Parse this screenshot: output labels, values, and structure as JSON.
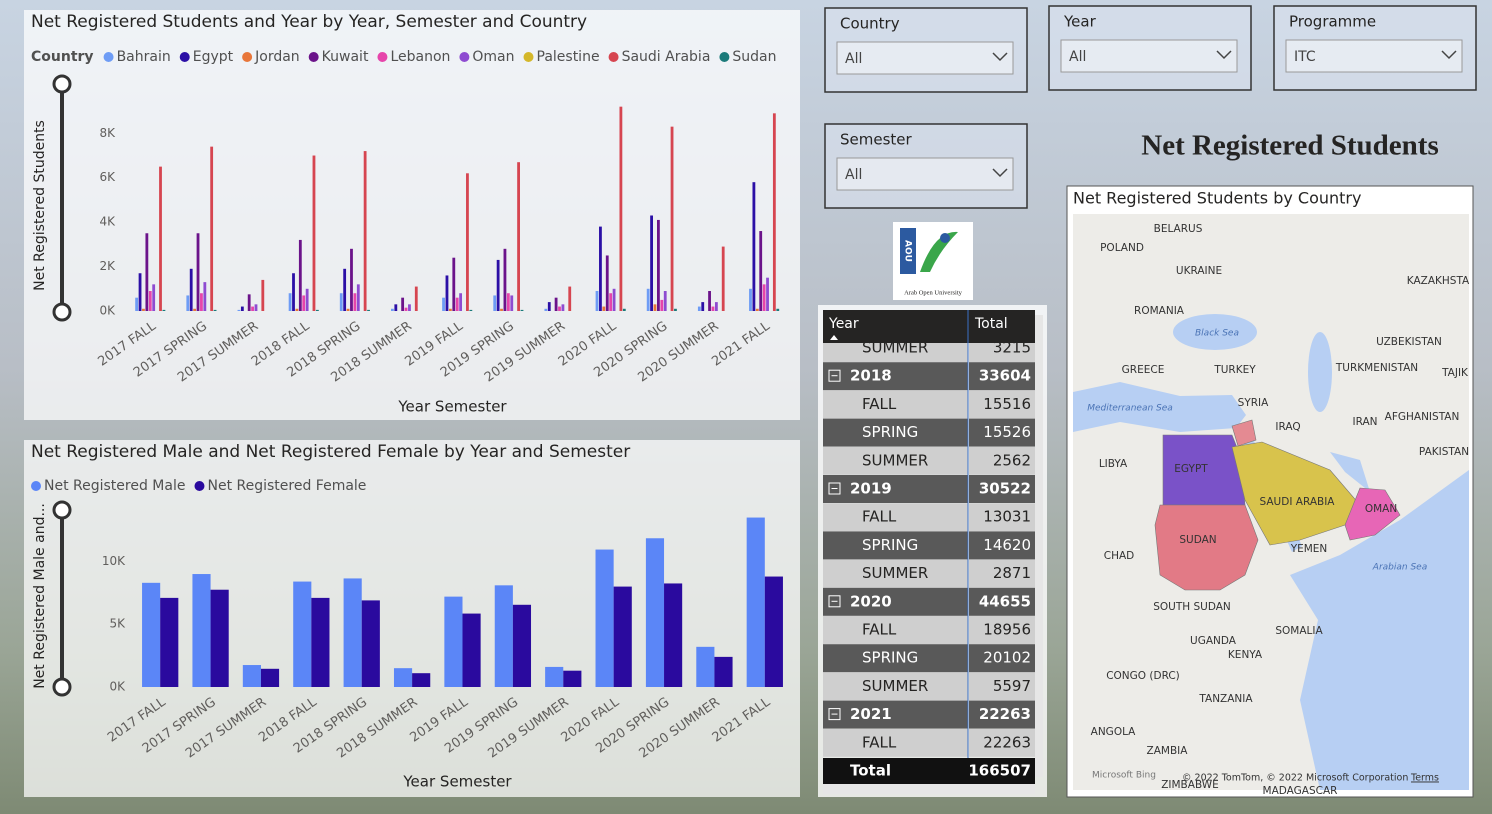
{
  "heading": "Net Registered Students",
  "logo": {
    "mark": "AOU",
    "caption": "Arab Open University"
  },
  "slicers": [
    {
      "label": "Country",
      "value": "All"
    },
    {
      "label": "Year",
      "value": "All"
    },
    {
      "label": "Programme",
      "value": "ITC"
    },
    {
      "label": "Semester",
      "value": "All"
    }
  ],
  "chart_data": [
    {
      "type": "bar",
      "title": "Net Registered Students and Year by Year, Semester and Country",
      "legend_title": "Country",
      "x_label": "Year Semester",
      "y_label": "Net Registered Students",
      "categories": [
        "2017 FALL",
        "2017 SPRING",
        "2017 SUMMER",
        "2018 FALL",
        "2018 SPRING",
        "2018 SUMMER",
        "2019 FALL",
        "2019 SPRING",
        "2019 SUMMER",
        "2020 FALL",
        "2020 SPRING",
        "2020 SUMMER",
        "2021 FALL"
      ],
      "series": [
        {
          "name": "Bahrain",
          "color": "#6e9cf5",
          "values": [
            600,
            700,
            50,
            800,
            800,
            100,
            600,
            700,
            100,
            900,
            1000,
            200,
            1000
          ]
        },
        {
          "name": "Egypt",
          "color": "#2b0fa6",
          "values": [
            1700,
            1900,
            200,
            1700,
            1900,
            300,
            1600,
            2300,
            400,
            3800,
            4300,
            400,
            5800
          ]
        },
        {
          "name": "Jordan",
          "color": "#e8763a",
          "values": [
            100,
            100,
            0,
            100,
            100,
            0,
            100,
            100,
            0,
            200,
            300,
            0,
            100
          ]
        },
        {
          "name": "Kuwait",
          "color": "#6b138a",
          "values": [
            3500,
            3500,
            750,
            3200,
            2800,
            600,
            2400,
            2800,
            600,
            2500,
            4100,
            900,
            3600
          ]
        },
        {
          "name": "Lebanon",
          "color": "#e645ab",
          "values": [
            900,
            800,
            200,
            700,
            800,
            150,
            600,
            800,
            200,
            800,
            500,
            200,
            1200
          ]
        },
        {
          "name": "Oman",
          "color": "#8e4bd1",
          "values": [
            1200,
            1300,
            300,
            1000,
            1200,
            300,
            800,
            700,
            300,
            1000,
            900,
            400,
            1500
          ]
        },
        {
          "name": "Palestine",
          "color": "#d4b72a",
          "values": [
            0,
            0,
            0,
            0,
            0,
            0,
            0,
            0,
            0,
            0,
            0,
            0,
            0
          ]
        },
        {
          "name": "Saudi Arabia",
          "color": "#d64550",
          "values": [
            6500,
            7400,
            1400,
            7000,
            7200,
            1100,
            6200,
            6700,
            1100,
            9200,
            8300,
            2900,
            8900
          ]
        },
        {
          "name": "Sudan",
          "color": "#1b7a7a",
          "values": [
            50,
            50,
            0,
            50,
            50,
            0,
            50,
            50,
            0,
            100,
            100,
            0,
            100
          ]
        }
      ],
      "ylim": [
        0,
        9500
      ],
      "yticks": [
        {
          "value": 0,
          "label": "0K"
        },
        {
          "value": 2000,
          "label": "2K"
        },
        {
          "value": 4000,
          "label": "4K"
        },
        {
          "value": 6000,
          "label": "6K"
        },
        {
          "value": 8000,
          "label": "8K"
        }
      ],
      "grid": false
    },
    {
      "type": "bar",
      "title": "Net Registered Male and Net Registered Female by Year and Semester",
      "x_label": "Year Semester",
      "y_label": "Net Registered Male and...",
      "categories": [
        "2017 FALL",
        "2017 SPRING",
        "2017 SUMMER",
        "2018 FALL",
        "2018 SPRING",
        "2018 SUMMER",
        "2019 FALL",
        "2019 SPRING",
        "2019 SUMMER",
        "2020 FALL",
        "2020 SPRING",
        "2020 SUMMER",
        "2021 FALL"
      ],
      "series": [
        {
          "name": "Net Registered Male",
          "color": "#5b86f7",
          "values": [
            8300,
            9000,
            1750,
            8400,
            8650,
            1500,
            7200,
            8100,
            1600,
            10950,
            11850,
            3200,
            13500
          ]
        },
        {
          "name": "Net Registered Female",
          "color": "#2a0a9e",
          "values": [
            7100,
            7750,
            1450,
            7100,
            6900,
            1100,
            5850,
            6550,
            1300,
            8000,
            8250,
            2400,
            8800
          ]
        }
      ],
      "ylim": [
        0,
        14500
      ],
      "yticks": [
        {
          "value": 0,
          "label": "0K"
        },
        {
          "value": 5000,
          "label": "5K"
        },
        {
          "value": 10000,
          "label": "10K"
        }
      ],
      "grid": false
    }
  ],
  "table": {
    "headers": [
      "Year",
      "Total"
    ],
    "groups": [
      {
        "rows": [
          {
            "label": "SUMMER",
            "total": 3215
          }
        ]
      },
      {
        "year": "2018",
        "total": 33604,
        "rows": [
          {
            "label": "FALL",
            "total": 15516
          },
          {
            "label": "SPRING",
            "total": 15526
          },
          {
            "label": "SUMMER",
            "total": 2562
          }
        ]
      },
      {
        "year": "2019",
        "total": 30522,
        "rows": [
          {
            "label": "FALL",
            "total": 13031
          },
          {
            "label": "SPRING",
            "total": 14620
          },
          {
            "label": "SUMMER",
            "total": 2871
          }
        ]
      },
      {
        "year": "2020",
        "total": 44655,
        "rows": [
          {
            "label": "FALL",
            "total": 18956
          },
          {
            "label": "SPRING",
            "total": 20102
          },
          {
            "label": "SUMMER",
            "total": 5597
          }
        ]
      },
      {
        "year": "2021",
        "total": 22263,
        "rows": [
          {
            "label": "FALL",
            "total": 22263
          }
        ]
      }
    ],
    "total_label": "Total",
    "total": 166507
  },
  "map": {
    "title": "Net Registered Students by Country",
    "labels": [
      "BELARUS",
      "POLAND",
      "UKRAINE",
      "KAZAKHSTA",
      "ROMANIA",
      "Black Sea",
      "UZBEKISTAN",
      "GREECE",
      "TURKEY",
      "TURKMENISTAN",
      "TAJIK",
      "Mediterranean Sea",
      "SYRIA",
      "IRAQ",
      "IRAN",
      "AFGHANISTAN",
      "LIBYA",
      "EGYPT",
      "PAKISTAN",
      "SAUDI ARABIA",
      "OMAN",
      "SUDAN",
      "YEMEN",
      "CHAD",
      "Arabian Sea",
      "SOUTH SUDAN",
      "SOMALIA",
      "UGANDA",
      "KENYA",
      "CONGO (DRC)",
      "TANZANIA",
      "ANGOLA",
      "ZAMBIA",
      "ZIMBABWE",
      "MADAGASCAR"
    ],
    "provider": "Microsoft Bing",
    "copyright": "© 2022 TomTom, © 2022 Microsoft Corporation",
    "terms": "Terms"
  }
}
